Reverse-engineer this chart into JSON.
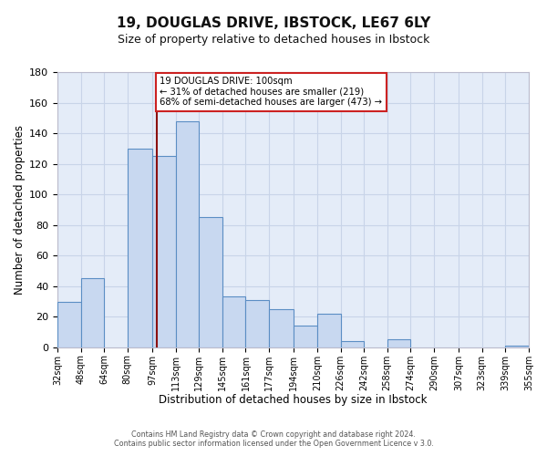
{
  "title": "19, DOUGLAS DRIVE, IBSTOCK, LE67 6LY",
  "subtitle": "Size of property relative to detached houses in Ibstock",
  "xlabel": "Distribution of detached houses by size in Ibstock",
  "ylabel": "Number of detached properties",
  "bin_labels": [
    "32sqm",
    "48sqm",
    "64sqm",
    "80sqm",
    "97sqm",
    "113sqm",
    "129sqm",
    "145sqm",
    "161sqm",
    "177sqm",
    "194sqm",
    "210sqm",
    "226sqm",
    "242sqm",
    "258sqm",
    "274sqm",
    "290sqm",
    "307sqm",
    "323sqm",
    "339sqm",
    "355sqm"
  ],
  "bin_edges": [
    32,
    48,
    64,
    80,
    97,
    113,
    129,
    145,
    161,
    177,
    194,
    210,
    226,
    242,
    258,
    274,
    290,
    307,
    323,
    339,
    355
  ],
  "bar_values": [
    30,
    45,
    0,
    130,
    125,
    148,
    85,
    33,
    31,
    25,
    14,
    22,
    4,
    0,
    5,
    0,
    0,
    0,
    0,
    1
  ],
  "bar_color": "#c8d8f0",
  "bar_edge_color": "#5b8ec4",
  "property_line_x": 100,
  "property_line_color": "#8b1010",
  "annotation_line1": "19 DOUGLAS DRIVE: 100sqm",
  "annotation_line2": "← 31% of detached houses are smaller (219)",
  "annotation_line3": "68% of semi-detached houses are larger (473) →",
  "annotation_box_fc": "#ffffff",
  "annotation_box_ec": "#cc2222",
  "ylim_max": 180,
  "yticks": [
    0,
    20,
    40,
    60,
    80,
    100,
    120,
    140,
    160,
    180
  ],
  "grid_color": "#c8d4e8",
  "axes_bg": "#e4ecf8",
  "fig_bg": "#ffffff",
  "title_fontsize": 11,
  "subtitle_fontsize": 9,
  "footer1": "Contains HM Land Registry data © Crown copyright and database right 2024.",
  "footer2": "Contains public sector information licensed under the Open Government Licence v 3.0."
}
